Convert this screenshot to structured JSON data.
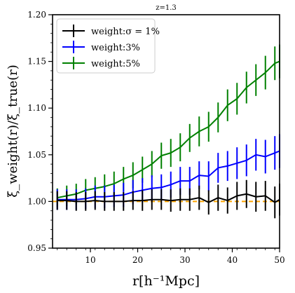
{
  "chart_data": {
    "type": "line",
    "title": "z=1.3",
    "xlabel": "r[h⁻¹Mpc]",
    "ylabel": "ξ_weight(r)/ξ_true(r)",
    "xlim": [
      2,
      50
    ],
    "ylim": [
      0.95,
      1.2
    ],
    "xticks": [
      10,
      20,
      30,
      40,
      50
    ],
    "xtick_labels": [
      "10",
      "20",
      "30",
      "40",
      "50"
    ],
    "yticks": [
      0.95,
      1.0,
      1.05,
      1.1,
      1.15,
      1.2
    ],
    "ytick_labels": [
      "0.95",
      "1.00",
      "1.05",
      "1.10",
      "1.15",
      "1.20"
    ],
    "grid": false,
    "legend_position": "top-left",
    "x": [
      3,
      5,
      7,
      9,
      11,
      13,
      15,
      17,
      19,
      21,
      23,
      25,
      27,
      29,
      31,
      33,
      35,
      37,
      39,
      41,
      43,
      45,
      47,
      49,
      50
    ],
    "reference_line": {
      "y": 1.0,
      "style": "dashed",
      "color": "#ffa500"
    },
    "series": [
      {
        "name": "weight:σ = 1%",
        "color": "#000000",
        "values": [
          1.001,
          1.001,
          1.0,
          1.0,
          1.001,
          1.0,
          1.0,
          1.0,
          1.001,
          1.001,
          1.002,
          1.002,
          1.001,
          1.002,
          1.002,
          1.004,
          0.999,
          1.004,
          1.001,
          1.006,
          1.008,
          1.005,
          1.006,
          0.999,
          1.002
        ],
        "errors": [
          0.01,
          0.01,
          0.01,
          0.01,
          0.01,
          0.01,
          0.01,
          0.01,
          0.01,
          0.011,
          0.011,
          0.011,
          0.012,
          0.012,
          0.012,
          0.013,
          0.013,
          0.014,
          0.014,
          0.015,
          0.015,
          0.016,
          0.016,
          0.017,
          0.017
        ]
      },
      {
        "name": "weight:3%",
        "color": "#0000ff",
        "values": [
          1.002,
          1.002,
          1.002,
          1.003,
          1.005,
          1.005,
          1.006,
          1.007,
          1.01,
          1.012,
          1.014,
          1.015,
          1.018,
          1.022,
          1.022,
          1.028,
          1.027,
          1.036,
          1.038,
          1.041,
          1.044,
          1.05,
          1.048,
          1.052,
          1.054
        ],
        "errors": [
          0.011,
          0.011,
          0.011,
          0.011,
          0.012,
          0.012,
          0.012,
          0.013,
          0.013,
          0.013,
          0.014,
          0.014,
          0.014,
          0.015,
          0.015,
          0.015,
          0.016,
          0.016,
          0.016,
          0.017,
          0.017,
          0.017,
          0.018,
          0.018,
          0.018
        ]
      },
      {
        "name": "weight:5%",
        "color": "#008000",
        "values": [
          1.004,
          1.006,
          1.008,
          1.012,
          1.014,
          1.016,
          1.019,
          1.024,
          1.028,
          1.034,
          1.04,
          1.049,
          1.052,
          1.058,
          1.068,
          1.075,
          1.08,
          1.09,
          1.103,
          1.11,
          1.122,
          1.13,
          1.138,
          1.148,
          1.15
        ],
        "errors": [
          0.01,
          0.011,
          0.011,
          0.012,
          0.012,
          0.013,
          0.013,
          0.013,
          0.014,
          0.014,
          0.014,
          0.014,
          0.015,
          0.015,
          0.015,
          0.016,
          0.016,
          0.016,
          0.017,
          0.017,
          0.017,
          0.017,
          0.018,
          0.018,
          0.018
        ]
      }
    ]
  }
}
